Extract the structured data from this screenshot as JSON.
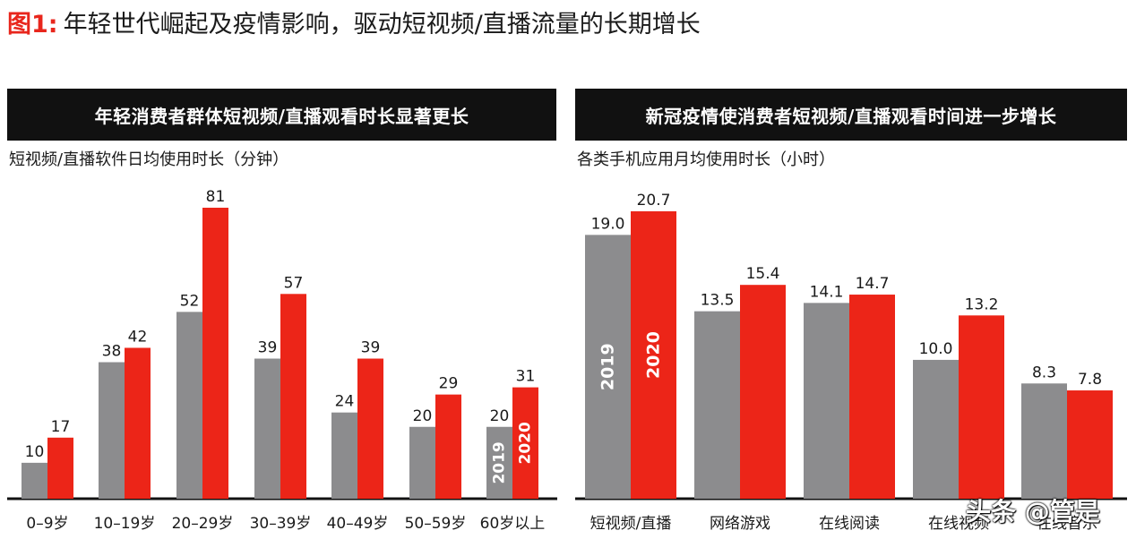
{
  "figure": {
    "title_prefix": "图1:",
    "title_rest": "年轻世代崛起及疫情影响，驱动短视频/直播流量的长期增长"
  },
  "colors": {
    "y2019": "#8c8c8e",
    "y2020": "#ec2518",
    "header_bg": "#111111"
  },
  "panels": {
    "left": {
      "header": "年轻消费者群体短视频/直播观看时长显著更长",
      "subtitle": "短视频/直播软件日均使用时长（分钟）"
    },
    "right": {
      "header": "新冠疫情使消费者短视频/直播观看时间进一步增长",
      "subtitle": "各类手机应用月均使用时长（小时）"
    }
  },
  "chart_data": [
    {
      "type": "bar",
      "categories": [
        "0–9岁",
        "10–19岁",
        "20–29岁",
        "30–39岁",
        "40–49岁",
        "50–59岁",
        "60岁以上"
      ],
      "series": [
        {
          "name": "2019",
          "values": [
            10,
            38,
            52,
            39,
            24,
            20,
            20
          ]
        },
        {
          "name": "2020",
          "values": [
            17,
            42,
            81,
            57,
            39,
            29,
            31
          ]
        }
      ],
      "value_labels": [
        [
          "10",
          "38",
          "52",
          "39",
          "24",
          "20",
          "20"
        ],
        [
          "17",
          "42",
          "81",
          "57",
          "39",
          "29",
          "31"
        ]
      ],
      "title": "年轻消费者群体短视频/直播观看时长显著更长",
      "ylabel": "短视频/直播软件日均使用时长（分钟）",
      "ylim": [
        0,
        81
      ],
      "legend_in_category": 6,
      "grid": false
    },
    {
      "type": "bar",
      "categories": [
        "短视频/直播",
        "网络游戏",
        "在线阅读",
        "在线视频",
        "在线音乐"
      ],
      "series": [
        {
          "name": "2019",
          "values": [
            19.0,
            13.5,
            14.1,
            10.0,
            8.3
          ]
        },
        {
          "name": "2020",
          "values": [
            20.7,
            15.4,
            14.7,
            13.2,
            7.8
          ]
        }
      ],
      "value_labels": [
        [
          "19.0",
          "13.5",
          "14.1",
          "10.0",
          "8.3"
        ],
        [
          "20.7",
          "15.4",
          "14.7",
          "13.2",
          "7.8"
        ]
      ],
      "title": "新冠疫情使消费者短视频/直播观看时间进一步增长",
      "ylabel": "各类手机应用月均使用时长（小时）",
      "ylim": [
        0,
        20.7
      ],
      "legend_in_category": 0,
      "grid": false
    }
  ],
  "watermark": "头条 @管是"
}
